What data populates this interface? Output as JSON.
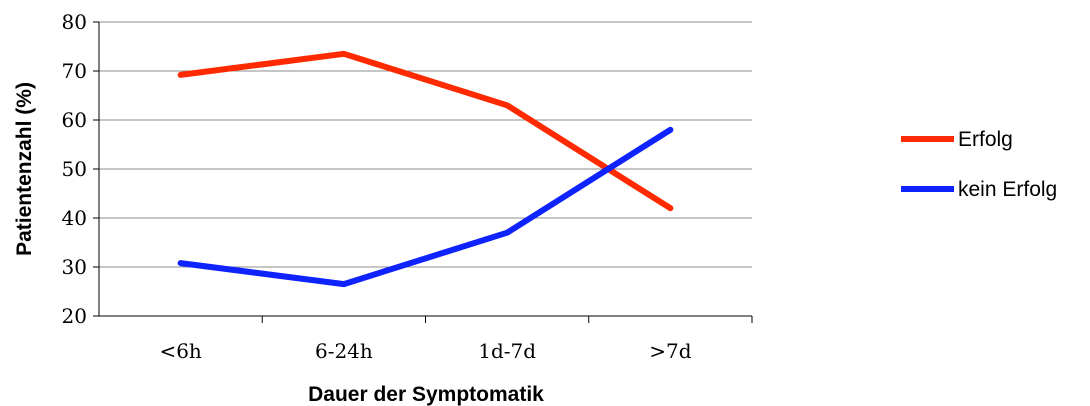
{
  "chart_data": {
    "type": "line",
    "title": "",
    "xlabel": "Dauer der Symptomatik",
    "ylabel": "Patientenzahl  (%)",
    "categories": [
      "<6h",
      "6-24h",
      "1d-7d",
      ">7d"
    ],
    "ylim": [
      20,
      80
    ],
    "yticks": [
      20,
      30,
      40,
      50,
      60,
      70,
      80
    ],
    "grid": true,
    "legend_position": "right",
    "series": [
      {
        "name": "Erfolg",
        "color": "#ff2a00",
        "values": [
          69.2,
          73.5,
          63,
          42
        ]
      },
      {
        "name": "kein Erfolg",
        "color": "#0f23ff",
        "values": [
          30.8,
          26.5,
          37,
          58
        ]
      }
    ]
  }
}
